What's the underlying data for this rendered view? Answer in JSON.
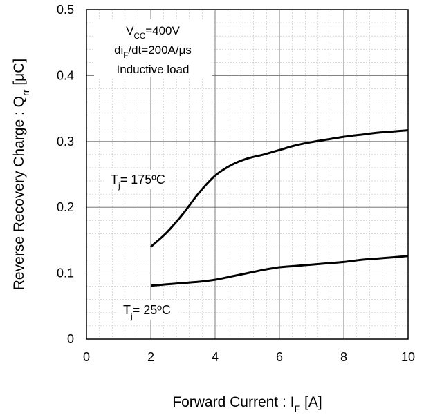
{
  "chart_data": {
    "type": "line",
    "xlabel": {
      "main": "Forward Current : I",
      "sub": "F",
      "unit": " [A]"
    },
    "ylabel": {
      "main": "Reverse Recovery Charge : Q",
      "sub": "rr",
      "unit": " [μC]"
    },
    "xlim": [
      0,
      10
    ],
    "ylim": [
      0,
      0.5
    ],
    "xticks": [
      "0",
      "2",
      "4",
      "6",
      "8",
      "10"
    ],
    "yticks": [
      "0",
      "0.1",
      "0.2",
      "0.3",
      "0.4",
      "0.5"
    ],
    "grid": true,
    "conditions": [
      {
        "main": "V",
        "sub": "CC",
        "rest": "=400V"
      },
      {
        "main": "di",
        "sub": "F",
        "rest": "/dt=200A/μs"
      },
      {
        "main": "Inductive load",
        "sub": "",
        "rest": ""
      }
    ],
    "series": [
      {
        "label": {
          "main": "T",
          "sub": "j",
          "rest": "= 175ºC"
        },
        "color": "#000000",
        "x": [
          2,
          2.5,
          3,
          3.5,
          4,
          4.5,
          5,
          5.5,
          6,
          6.5,
          7,
          7.5,
          8,
          8.5,
          9,
          9.5,
          10
        ],
        "y": [
          0.14,
          0.162,
          0.19,
          0.222,
          0.248,
          0.264,
          0.274,
          0.28,
          0.287,
          0.294,
          0.299,
          0.303,
          0.307,
          0.31,
          0.313,
          0.315,
          0.317
        ]
      },
      {
        "label": {
          "main": "T",
          "sub": "j",
          "rest": "= 25ºC"
        },
        "color": "#000000",
        "x": [
          2,
          2.5,
          3,
          3.5,
          4,
          4.5,
          5,
          5.5,
          6,
          6.5,
          7,
          7.5,
          8,
          8.5,
          9,
          9.5,
          10
        ],
        "y": [
          0.081,
          0.083,
          0.085,
          0.087,
          0.09,
          0.095,
          0.1,
          0.105,
          0.109,
          0.111,
          0.113,
          0.115,
          0.117,
          0.12,
          0.122,
          0.124,
          0.126
        ]
      }
    ]
  }
}
